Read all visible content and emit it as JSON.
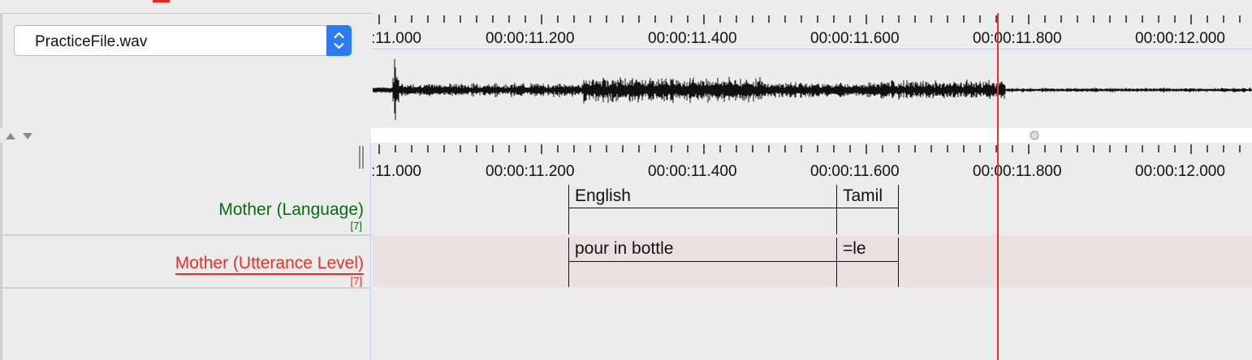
{
  "file_selector": {
    "value": "PracticeFile.wav",
    "stepper_icon": "up-down-chevron-icon"
  },
  "ruler": {
    "labels": [
      ":11.000",
      "00:00:11.200",
      "00:00:11.400",
      "00:00:11.600",
      "00:00:11.800",
      "00:00:12.000"
    ]
  },
  "splitter": {
    "up_icon": "triangle-up-icon",
    "down_icon": "triangle-down-icon",
    "handle_icon": "drag-handle-icon"
  },
  "tiers": [
    {
      "label": "Mother (Language)",
      "count": "[7]",
      "color": "#0a6a16",
      "annotations": [
        {
          "text": "English"
        },
        {
          "text": "Tamil"
        }
      ]
    },
    {
      "label": "Mother (Utterance Level)",
      "count": "[7]",
      "color": "#e8302a",
      "annotations": [
        {
          "text": "pour in bottle"
        },
        {
          "text": "=le"
        }
      ]
    }
  ],
  "colors": {
    "cursor": "#e8302a",
    "row_highlight": "#ebe0e0",
    "accent": "#2d7af5"
  }
}
